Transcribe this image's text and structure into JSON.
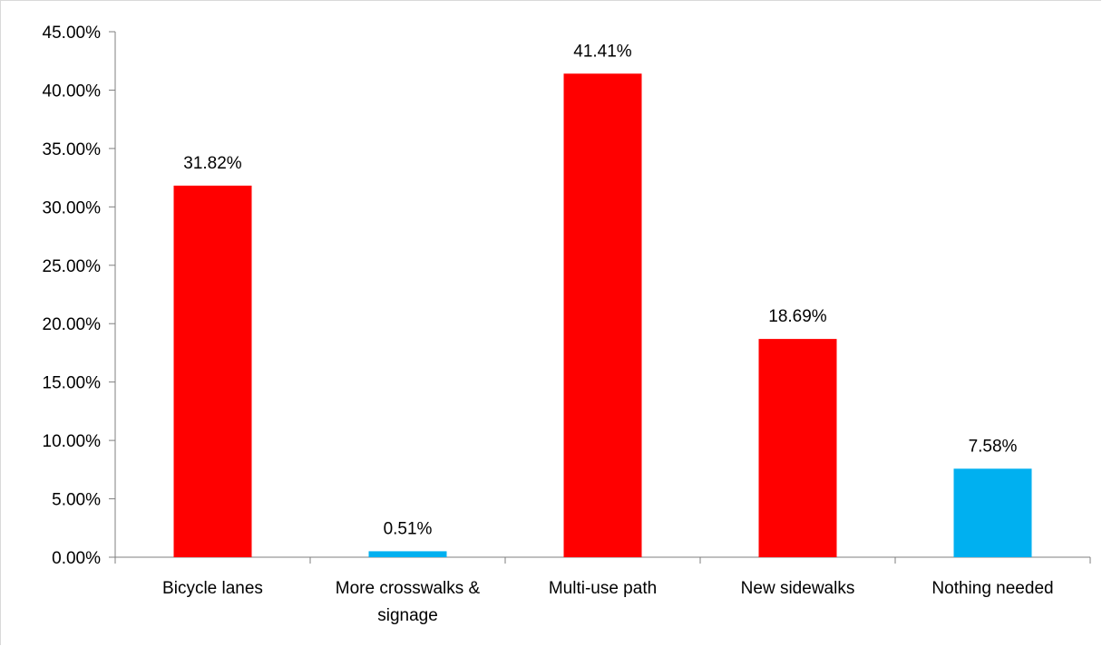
{
  "chart_data": {
    "type": "bar",
    "categories": [
      "Bicycle lanes",
      "More crosswalks & signage",
      "Multi-use path",
      "New sidewalks",
      "Nothing needed"
    ],
    "category_lines": [
      [
        "Bicycle lanes"
      ],
      [
        "More crosswalks &",
        "signage"
      ],
      [
        "Multi-use path"
      ],
      [
        "New sidewalks"
      ],
      [
        "Nothing needed"
      ]
    ],
    "values": [
      31.82,
      0.51,
      41.41,
      18.69,
      7.58
    ],
    "data_labels": [
      "31.82%",
      "0.51%",
      "41.41%",
      "18.69%",
      "7.58%"
    ],
    "bar_colors": [
      "#ff0000",
      "#00b0f0",
      "#ff0000",
      "#ff0000",
      "#00b0f0"
    ],
    "ylim": [
      0,
      45
    ],
    "ytick_values": [
      0,
      5,
      10,
      15,
      20,
      25,
      30,
      35,
      40,
      45
    ],
    "ytick_labels": [
      "0.00%",
      "5.00%",
      "10.00%",
      "15.00%",
      "20.00%",
      "25.00%",
      "30.00%",
      "35.00%",
      "40.00%",
      "45.00%"
    ],
    "grid": false,
    "legend": "none",
    "title": "",
    "xlabel": "",
    "ylabel": ""
  },
  "colors": {
    "axis": "#7f7f7f",
    "frame": "#d9d9d9"
  }
}
